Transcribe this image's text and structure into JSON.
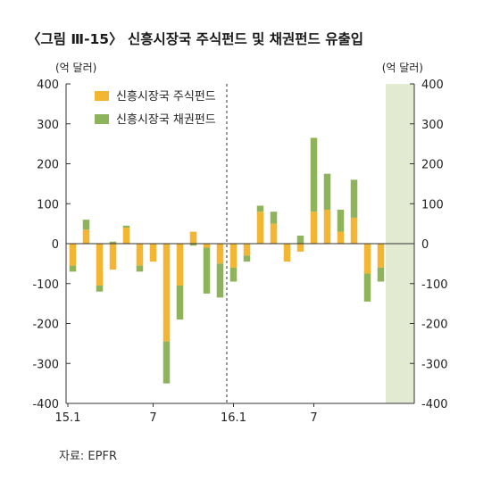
{
  "figure": {
    "number_label": "〈그림 Ⅲ-15〉",
    "title": "신흥시장국 주식펀드 및 채권펀드 유출입",
    "source": "자료: EPFR"
  },
  "chart_data": {
    "type": "bar",
    "stacked": true,
    "y_unit_left": "(억 달러)",
    "y_unit_right": "(억 달러)",
    "ylim": [
      -400,
      400
    ],
    "y_ticks": [
      "400",
      "300",
      "200",
      "100",
      "0",
      "-100",
      "-200",
      "-300",
      "-400"
    ],
    "y_tick_values": [
      400,
      300,
      200,
      100,
      0,
      -100,
      -200,
      -300,
      -400
    ],
    "x_tick_labels": [
      {
        "label": "15.1",
        "index": 0
      },
      {
        "label": "7",
        "index": 6
      },
      {
        "label": "16.1",
        "index": 12
      },
      {
        "label": "7",
        "index": 18
      }
    ],
    "categories": [
      "15.1",
      "15.2",
      "15.3",
      "15.4",
      "15.5",
      "15.6",
      "15.7",
      "15.8",
      "15.9",
      "15.10",
      "15.11",
      "15.12",
      "16.1",
      "16.2",
      "16.3",
      "16.4",
      "16.5",
      "16.6",
      "16.7",
      "16.8",
      "16.9",
      "16.10",
      "16.11",
      "16.12",
      "17.1",
      "17.2"
    ],
    "series": [
      {
        "name": "신흥시장국 주식펀드",
        "color": "#f2b632",
        "values": [
          -55,
          35,
          -105,
          -65,
          40,
          -55,
          -45,
          -245,
          -105,
          30,
          -10,
          -50,
          -60,
          -30,
          80,
          50,
          -45,
          -20,
          80,
          85,
          30,
          65,
          -75,
          -60,
          null,
          null
        ]
      },
      {
        "name": "신흥시장국 채권펀드",
        "color": "#8fb35b",
        "values": [
          -15,
          25,
          -15,
          5,
          5,
          -15,
          0,
          -105,
          -85,
          -5,
          -115,
          -85,
          -35,
          -15,
          15,
          30,
          0,
          20,
          185,
          90,
          55,
          95,
          -70,
          -35,
          null,
          null
        ]
      }
    ],
    "divider_after_category": "15.12",
    "highlight_categories": [
      "17.1",
      "17.2"
    ],
    "legend_position": "top-left"
  }
}
